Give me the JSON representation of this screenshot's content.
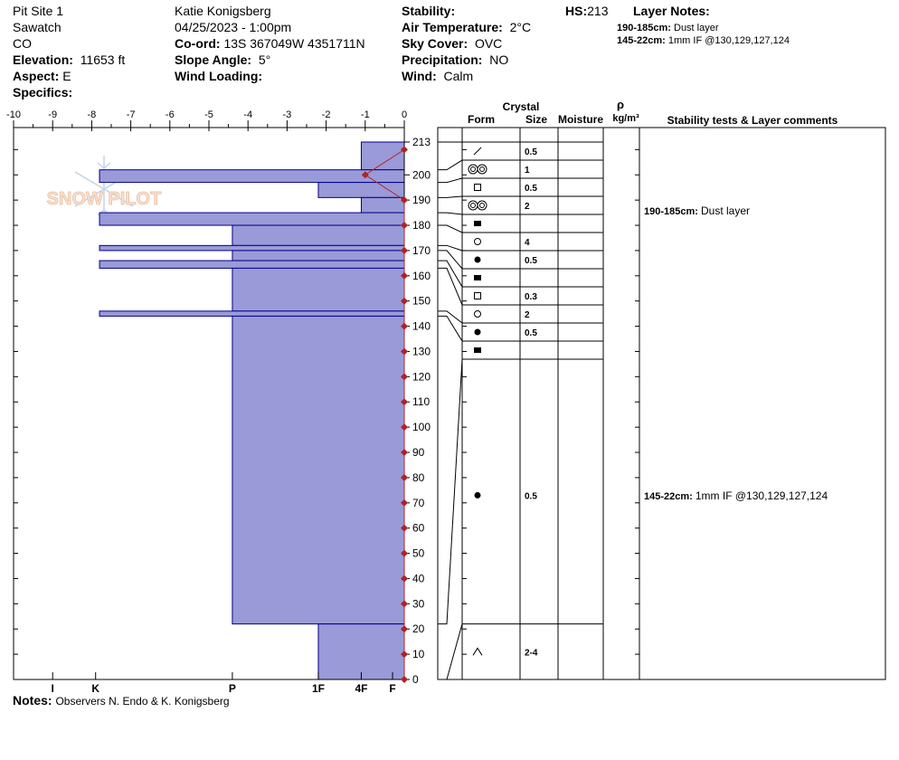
{
  "header": {
    "site": "Pit Site 1",
    "range": "Sawatch",
    "state": "CO",
    "elevation_label": "Elevation:",
    "elevation": "11653 ft",
    "aspect_label": "Aspect:",
    "aspect": "E",
    "specifics_label": "Specifics:",
    "observer": "Katie Konigsberg",
    "datetime": "04/25/2023 - 1:00pm",
    "coord_label": "Co-ord:",
    "coord": "13S 367049W 4351711N",
    "slope_label": "Slope Angle:",
    "slope": "5°",
    "wind_loading_label": "Wind Loading:",
    "stability_label": "Stability:",
    "air_temp_label": "Air Temperature:",
    "air_temp": "2°C",
    "sky_label": "Sky Cover:",
    "sky": "OVC",
    "precip_label": "Precipitation:",
    "precip": "NO",
    "wind_label": "Wind:",
    "wind": "Calm",
    "hs_label": "HS:",
    "hs": "213",
    "layer_notes_title": "Layer Notes:",
    "layer_notes": [
      {
        "range": "190-185cm:",
        "text": "Dust layer"
      },
      {
        "range": "145-22cm:",
        "text": "1mm IF @130,129,127,124"
      }
    ]
  },
  "logo_text": "SNOW PILOT",
  "table_headers": {
    "crystal": "Crystal",
    "form": "Form",
    "size": "Size",
    "moisture": "Moisture",
    "rho": "ρ",
    "density_unit": "kg/m³",
    "comments": "Stability tests & Layer comments"
  },
  "comments": [
    {
      "range": "190-185cm:",
      "text": "Dust layer",
      "depth": 187.5
    },
    {
      "range": "145-22cm:",
      "text": "1mm IF @130,129,127,124",
      "depth": 73
    }
  ],
  "notes_label": "Notes:",
  "notes": "Observers N. Endo & K. Konigsberg",
  "colors": {
    "bar_fill": "#9a9ad8",
    "bar_stroke": "#00008b",
    "temp": "#b22222"
  },
  "chart_data": {
    "type": "bar",
    "temperature_axis": {
      "ticks": [
        -10,
        -9,
        -8,
        -7,
        -6,
        -5,
        -4,
        -3,
        -2,
        -1,
        0
      ],
      "range": [
        -10,
        0
      ]
    },
    "depth_axis": {
      "ticks": [
        0,
        10,
        20,
        30,
        40,
        50,
        60,
        70,
        80,
        90,
        100,
        110,
        120,
        130,
        140,
        150,
        160,
        170,
        180,
        190,
        200,
        213
      ],
      "range": [
        0,
        213
      ]
    },
    "hardness_axis": {
      "labels": [
        "I",
        "K",
        "P",
        "1F",
        "4F",
        "F"
      ]
    },
    "hardness_layers": [
      {
        "top": 213,
        "bottom": 202,
        "value": -1.1
      },
      {
        "top": 202,
        "bottom": 197,
        "value": -7.8
      },
      {
        "top": 197,
        "bottom": 191,
        "value": -2.2
      },
      {
        "top": 191,
        "bottom": 185,
        "value": -1.1
      },
      {
        "top": 185,
        "bottom": 180,
        "value": -7.8
      },
      {
        "top": 180,
        "bottom": 172,
        "value": -4.4
      },
      {
        "top": 172,
        "bottom": 170,
        "value": -7.8
      },
      {
        "top": 170,
        "bottom": 166,
        "value": -4.4
      },
      {
        "top": 166,
        "bottom": 163,
        "value": -7.8
      },
      {
        "top": 163,
        "bottom": 146,
        "value": -4.4
      },
      {
        "top": 146,
        "bottom": 144,
        "value": -7.8
      },
      {
        "top": 144,
        "bottom": 22,
        "value": -4.4
      },
      {
        "top": 22,
        "bottom": 0,
        "value": -2.2
      }
    ],
    "temperature_profile": [
      {
        "depth": 210,
        "temp": 0
      },
      {
        "depth": 200,
        "temp": -1
      },
      {
        "depth": 190,
        "temp": 0
      },
      {
        "depth": 180,
        "temp": 0
      },
      {
        "depth": 170,
        "temp": 0
      },
      {
        "depth": 160,
        "temp": 0
      },
      {
        "depth": 150,
        "temp": 0
      },
      {
        "depth": 140,
        "temp": 0
      },
      {
        "depth": 130,
        "temp": 0
      },
      {
        "depth": 120,
        "temp": 0
      },
      {
        "depth": 110,
        "temp": 0
      },
      {
        "depth": 100,
        "temp": 0
      },
      {
        "depth": 90,
        "temp": 0
      },
      {
        "depth": 80,
        "temp": 0
      },
      {
        "depth": 70,
        "temp": 0
      },
      {
        "depth": 60,
        "temp": 0
      },
      {
        "depth": 50,
        "temp": 0
      },
      {
        "depth": 40,
        "temp": 0
      },
      {
        "depth": 30,
        "temp": 0
      },
      {
        "depth": 20,
        "temp": 0
      },
      {
        "depth": 10,
        "temp": 0
      },
      {
        "depth": 0,
        "temp": 0
      }
    ],
    "layers": [
      {
        "top": 213,
        "bottom": 202,
        "form": "decomposing",
        "size": "0.5"
      },
      {
        "top": 202,
        "bottom": 197,
        "form": "melt-freeze",
        "size": "1"
      },
      {
        "top": 197,
        "bottom": 191,
        "form": "faceted",
        "size": "0.5"
      },
      {
        "top": 191,
        "bottom": 185,
        "form": "melt-freeze",
        "size": "2"
      },
      {
        "top": 185,
        "bottom": 180,
        "form": "ice",
        "size": ""
      },
      {
        "top": 180,
        "bottom": 172,
        "form": "rounded",
        "size": "4"
      },
      {
        "top": 172,
        "bottom": 170,
        "form": "melt-forms",
        "size": "0.5"
      },
      {
        "top": 170,
        "bottom": 166,
        "form": "ice",
        "size": ""
      },
      {
        "top": 166,
        "bottom": 163,
        "form": "faceted",
        "size": "0.3"
      },
      {
        "top": 163,
        "bottom": 146,
        "form": "rounded",
        "size": "2"
      },
      {
        "top": 146,
        "bottom": 144,
        "form": "melt-forms",
        "size": "0.5"
      },
      {
        "top": 144,
        "bottom": 22,
        "form": "ice",
        "size": ""
      },
      {
        "top": 22,
        "bottom": 0,
        "form": "melt-forms",
        "size": "0.5"
      },
      {
        "top": 0,
        "bottom": 0,
        "form": "depth-hoar",
        "size": "2-4"
      }
    ]
  }
}
